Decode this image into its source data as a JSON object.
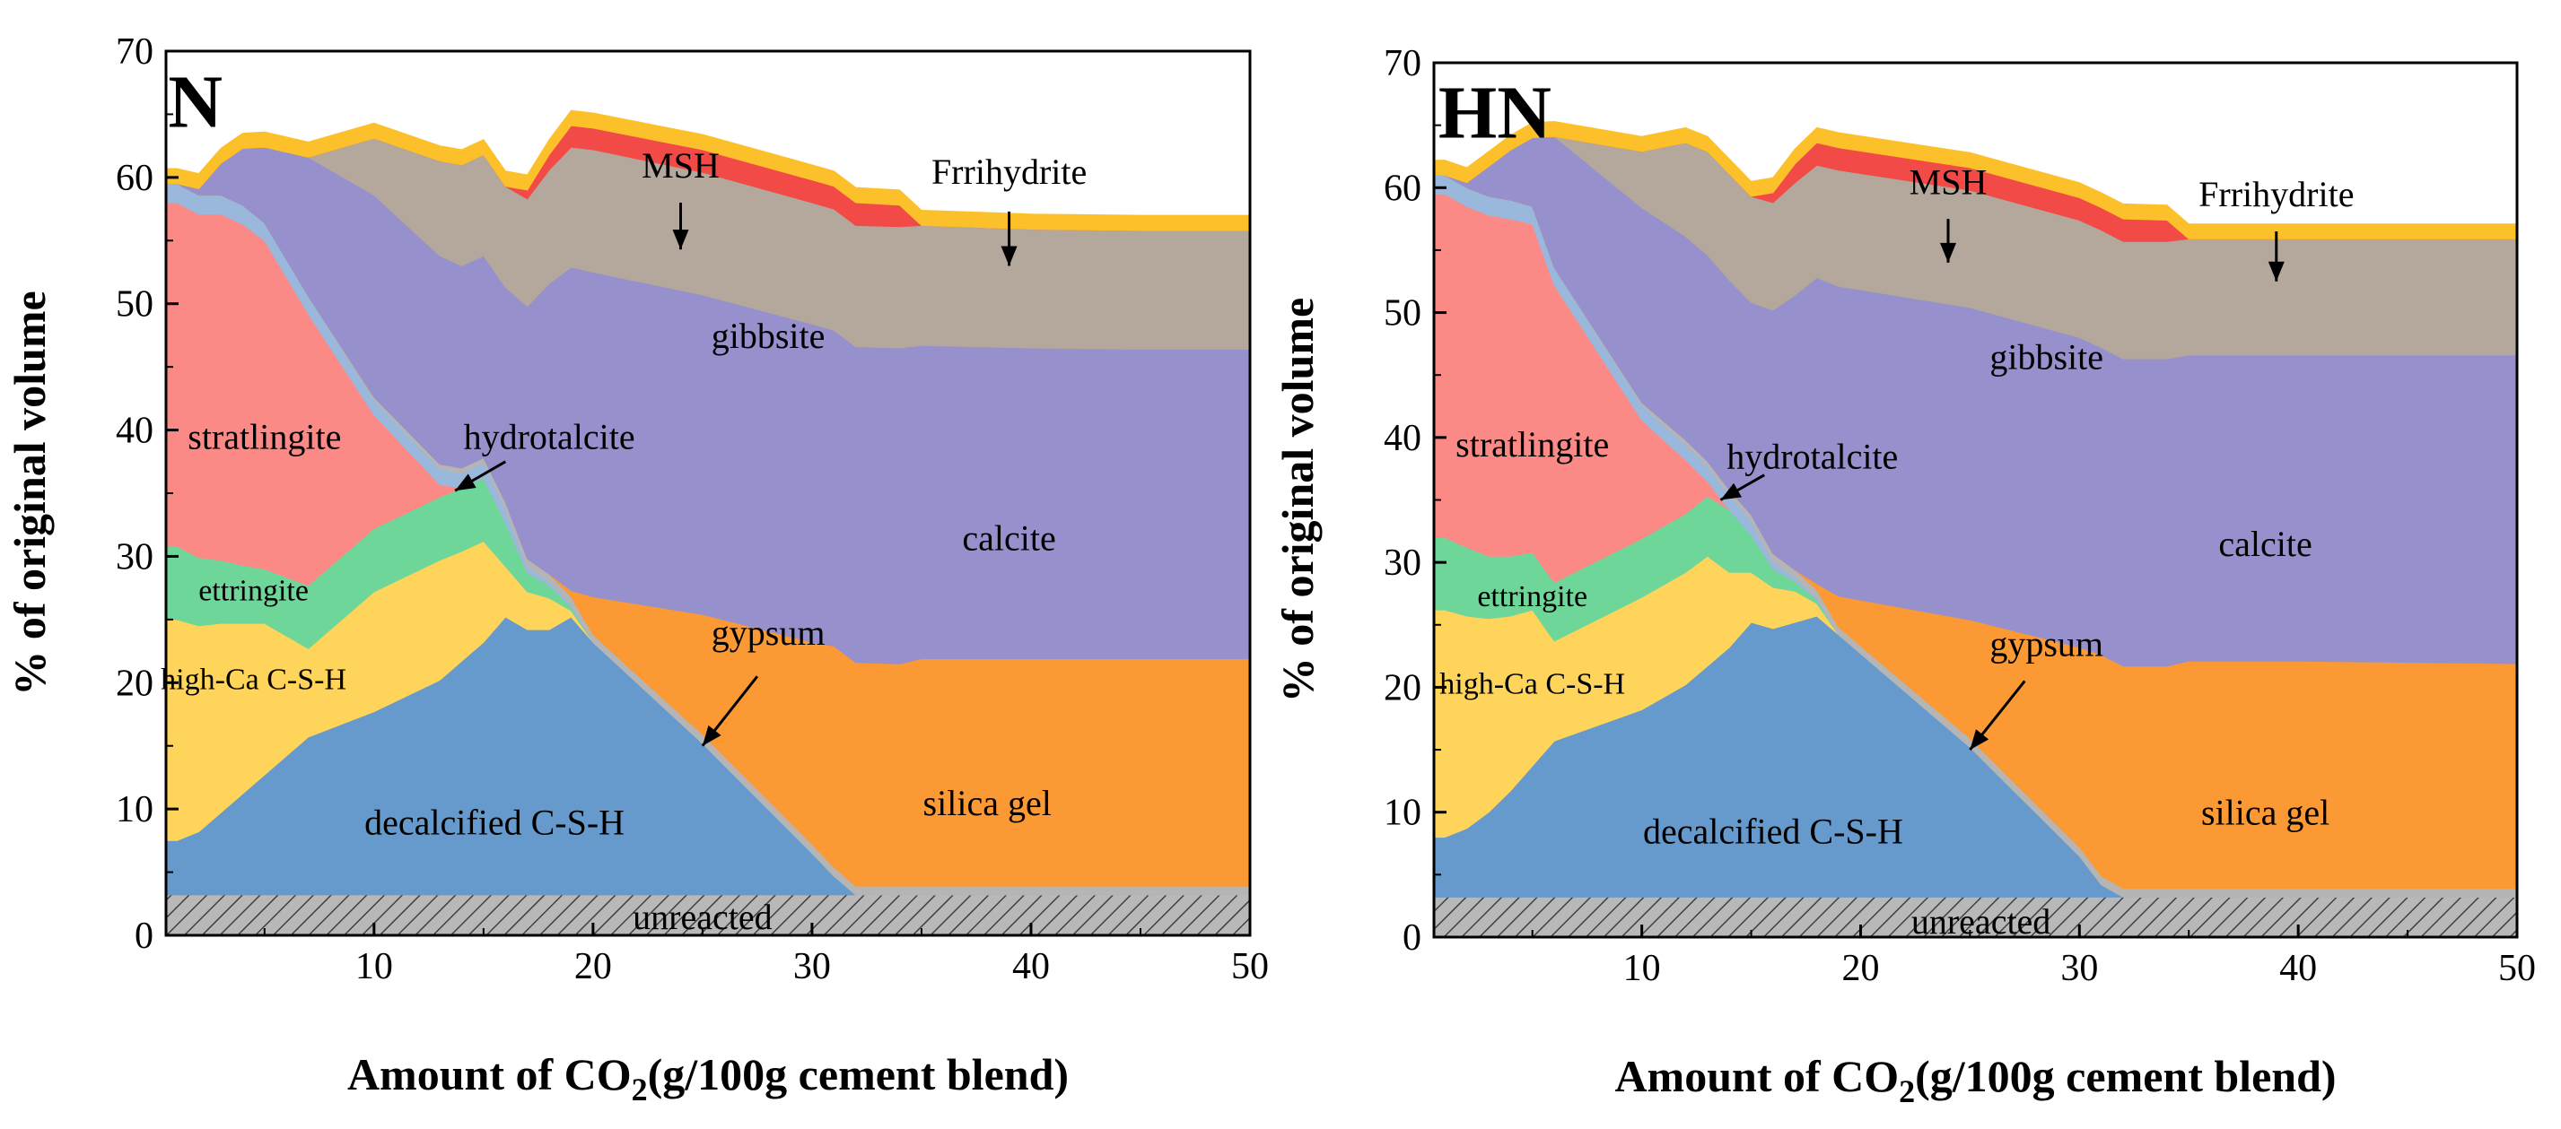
{
  "chart_data": [
    {
      "type": "area",
      "panel_label": "N",
      "xlabel_main": "Amount of CO",
      "xlabel_sub": "2",
      "xlabel_tail": "(g/100g cement blend)",
      "ylabel": "% of original volume",
      "xlim": [
        0.5,
        50
      ],
      "ylim": [
        0,
        70
      ],
      "xticks": [
        "10",
        "20",
        "30",
        "40",
        "50"
      ],
      "yticks": [
        "0",
        "10",
        "20",
        "30",
        "40",
        "50",
        "60",
        "70"
      ],
      "x": [
        0.5,
        1,
        2,
        3,
        4,
        5,
        7,
        10,
        13,
        14,
        15,
        16,
        17,
        18,
        19,
        20,
        25,
        30,
        31,
        32,
        34,
        35,
        40,
        45,
        50
      ],
      "series": [
        {
          "name": "unreacted",
          "color": "#b8b8b8",
          "hatch": true,
          "values": [
            3.2,
            3.2,
            3.2,
            3.2,
            3.2,
            3.2,
            3.2,
            3.2,
            3.2,
            3.2,
            3.2,
            3.2,
            3.2,
            3.2,
            3.2,
            3.2,
            3.2,
            3.2,
            3.2,
            3.2,
            3.2,
            3.2,
            3.2,
            3.2,
            3.2
          ]
        },
        {
          "name": "decalcified C-S-H",
          "color": "#6699cc",
          "values": [
            4.3,
            4.3,
            5,
            6.5,
            8,
            9.5,
            12.5,
            14.5,
            17,
            18.5,
            20,
            22,
            21,
            21,
            22,
            20,
            12,
            3.3,
            1.5,
            0,
            0,
            0,
            0,
            0,
            0
          ]
        },
        {
          "name": "high-Ca C-S-H",
          "color": "#ffd45a",
          "values": [
            17.5,
            17.5,
            16.3,
            15,
            13.5,
            12,
            7,
            9.5,
            9.5,
            8.7,
            8,
            4,
            3,
            2.5,
            0.5,
            0,
            0,
            0,
            0,
            0,
            0,
            0,
            0,
            0,
            0
          ]
        },
        {
          "name": "ettringite",
          "color": "#6fd69a",
          "values": [
            5.8,
            5.8,
            5.4,
            5,
            4.6,
            4.3,
            5,
            5,
            5,
            5,
            5,
            3.5,
            1.5,
            1,
            0.3,
            0,
            0,
            0,
            0,
            0,
            0,
            0,
            0,
            0,
            0
          ]
        },
        {
          "name": "stratlingite",
          "color": "#fb8a87",
          "values": [
            27.2,
            27.2,
            27.2,
            27.4,
            27,
            26,
            21.5,
            9,
            1,
            0,
            0,
            0,
            0,
            0,
            0,
            0,
            0,
            0,
            0,
            0,
            0,
            0,
            0,
            0,
            0
          ]
        },
        {
          "name": "hydrotalcite",
          "color": "#9ab8dc",
          "values": [
            1.5,
            1.5,
            1.5,
            1.5,
            1.5,
            1.4,
            1.4,
            1.2,
            1.2,
            1.2,
            1.2,
            1.1,
            0.5,
            0.3,
            0.2,
            0,
            0,
            0,
            0,
            0,
            0,
            0,
            0,
            0,
            0
          ]
        },
        {
          "name": "gypsum",
          "color": "#b5b5b5",
          "values": [
            0,
            0,
            0,
            0,
            0,
            0,
            0,
            0.2,
            0.4,
            0.4,
            0.4,
            0.5,
            0.6,
            0.6,
            0.6,
            0.6,
            0.7,
            0.7,
            0.7,
            0.7,
            0.7,
            0.7,
            0.7,
            0.7,
            0.7
          ]
        },
        {
          "name": "silica gel",
          "color": "#fb9935",
          "values": [
            0,
            0,
            0,
            0,
            0,
            0,
            0,
            0,
            0,
            0,
            0,
            0,
            0,
            0,
            0.5,
            3,
            9.5,
            16,
            17.5,
            17.7,
            17.6,
            18,
            18,
            18,
            18
          ]
        },
        {
          "name": "calcite",
          "color": "#9690cc",
          "values": [
            0,
            0,
            0.5,
            2.5,
            4.5,
            6,
            11,
            16,
            16.5,
            16,
            16,
            17,
            20,
            23,
            25.6,
            25.7,
            25.3,
            25.2,
            25,
            25,
            25,
            24.8,
            24.6,
            24.5,
            24.5
          ]
        },
        {
          "name": "gibbsite",
          "color": "#b4a79b",
          "values": [
            0,
            0,
            0,
            0,
            0,
            0,
            0,
            4.5,
            7.5,
            8,
            8,
            8,
            8.5,
            9,
            9.5,
            9.7,
            9.7,
            9.6,
            9.6,
            9.6,
            9.6,
            9.5,
            9.4,
            9.4,
            9.4
          ]
        },
        {
          "name": "MSH",
          "color": "#f24a46",
          "values": [
            0,
            0,
            0,
            0,
            0,
            0,
            0,
            0,
            0,
            0,
            0,
            0,
            0.7,
            1.2,
            1.7,
            1.7,
            1.8,
            1.8,
            1.8,
            1.8,
            1.7,
            0,
            0,
            0,
            0
          ]
        },
        {
          "name": "Frrihydrite",
          "color": "#fcc12a",
          "values": [
            1.2,
            1.2,
            1.2,
            1.2,
            1.2,
            1.2,
            1.2,
            1.2,
            1.2,
            1.2,
            1.2,
            1.2,
            1.2,
            1.2,
            1.2,
            1.2,
            1.2,
            1.2,
            1.2,
            1.2,
            1.2,
            1.2,
            1.2,
            1.2,
            1.2
          ]
        }
      ],
      "labels": [
        {
          "text": "N",
          "x": 0.6,
          "y": 64
        },
        {
          "text": "MSH",
          "x": 24,
          "y": 60
        },
        {
          "text": "Frrihydrite",
          "x": 39,
          "y": 59.5
        },
        {
          "text": "gibbsite",
          "x": 28,
          "y": 46.5
        },
        {
          "text": "hydrotalcite",
          "x": 18,
          "y": 38.5
        },
        {
          "text": "calcite",
          "x": 39,
          "y": 30.5
        },
        {
          "text": "stratlingite",
          "x": 5,
          "y": 38.5
        },
        {
          "text": "ettringite",
          "x": 4.5,
          "y": 26.5
        },
        {
          "text": "high-Ca C-S-H",
          "x": 4.5,
          "y": 19.5
        },
        {
          "text": "gypsum",
          "x": 28,
          "y": 23
        },
        {
          "text": "silica gel",
          "x": 38,
          "y": 9.5
        },
        {
          "text": "decalcified C-S-H",
          "x": 15.5,
          "y": 8
        },
        {
          "text": "unreacted",
          "x": 25,
          "y": 0.5
        }
      ],
      "arrows": [
        {
          "from": [
            24,
            58
          ],
          "to": [
            24,
            54.3
          ]
        },
        {
          "from": [
            39,
            57.3
          ],
          "to": [
            39,
            53
          ]
        },
        {
          "from": [
            16,
            37.5
          ],
          "to": [
            13.7,
            35.2
          ]
        },
        {
          "from": [
            27.5,
            20.5
          ],
          "to": [
            25,
            15
          ]
        }
      ]
    },
    {
      "type": "area",
      "panel_label": "HN",
      "xlabel_main": "Amount of CO",
      "xlabel_sub": "2",
      "xlabel_tail": "(g/100g cement blend)",
      "ylabel": "% of original volume",
      "xlim": [
        0.5,
        50
      ],
      "ylim": [
        0,
        70
      ],
      "xticks": [
        "10",
        "20",
        "30",
        "40",
        "50"
      ],
      "yticks": [
        "0",
        "10",
        "20",
        "30",
        "40",
        "50",
        "60",
        "70"
      ],
      "x": [
        0.5,
        1,
        2,
        3,
        4,
        5,
        6,
        10,
        12,
        13,
        14,
        15,
        16,
        17,
        18,
        19,
        25,
        30,
        31,
        32,
        34,
        35,
        40,
        45,
        50
      ],
      "series": [
        {
          "name": "unreacted",
          "color": "#b8b8b8",
          "hatch": true,
          "values": [
            3.2,
            3.2,
            3.2,
            3.2,
            3.2,
            3.2,
            3.2,
            3.2,
            3.2,
            3.2,
            3.2,
            3.2,
            3.2,
            3.2,
            3.2,
            3.2,
            3.2,
            3.2,
            3.2,
            3.2,
            3.2,
            3.2,
            3.2,
            3.2,
            3.2
          ]
        },
        {
          "name": "decalcified C-S-H",
          "color": "#6699cc",
          "values": [
            4.8,
            4.8,
            5.5,
            6.8,
            8.5,
            10.5,
            12.5,
            15,
            17,
            18.5,
            20,
            22,
            21.5,
            22,
            22.5,
            21,
            12,
            3.3,
            1,
            0,
            0,
            0,
            0,
            0,
            0
          ]
        },
        {
          "name": "high-Ca C-S-H",
          "color": "#ffd45a",
          "values": [
            18.2,
            18.2,
            17,
            15.5,
            14,
            12.5,
            8,
            9,
            9,
            8.8,
            6,
            4,
            3.3,
            2.5,
            1,
            0,
            0,
            0,
            0,
            0,
            0,
            0,
            0,
            0,
            0
          ]
        },
        {
          "name": "ettringite",
          "color": "#6fd69a",
          "values": [
            5.8,
            5.8,
            5.5,
            5,
            4.8,
            4.6,
            4.7,
            4.7,
            4.7,
            4.8,
            5,
            3,
            1.5,
            0.8,
            0.3,
            0,
            0,
            0,
            0,
            0,
            0,
            0,
            0,
            0,
            0
          ]
        },
        {
          "name": "stratlingite",
          "color": "#fb8a87",
          "values": [
            27.5,
            27.5,
            27.3,
            27.3,
            27,
            26.3,
            23.8,
            9.5,
            4.3,
            1.2,
            0,
            0,
            0,
            0,
            0,
            0,
            0,
            0,
            0,
            0,
            0,
            0,
            0,
            0,
            0
          ]
        },
        {
          "name": "hydrotalcite",
          "color": "#9ab8dc",
          "values": [
            1.5,
            1.5,
            1.5,
            1.5,
            1.5,
            1.4,
            1.4,
            1.2,
            1.2,
            1.2,
            1.2,
            1.1,
            0.6,
            0.3,
            0.2,
            0,
            0,
            0,
            0,
            0,
            0,
            0,
            0,
            0,
            0
          ]
        },
        {
          "name": "gypsum",
          "color": "#b5b5b5",
          "values": [
            0,
            0,
            0,
            0,
            0,
            0,
            0,
            0.2,
            0.4,
            0.4,
            0.4,
            0.5,
            0.6,
            0.6,
            0.6,
            0.6,
            0.7,
            0.7,
            0.7,
            0.7,
            0.7,
            0.7,
            0.7,
            0.7,
            0.7
          ]
        },
        {
          "name": "silica gel",
          "color": "#fb9935",
          "values": [
            0,
            0,
            0,
            0,
            0,
            0,
            0,
            0,
            0,
            0,
            0,
            0,
            0,
            0,
            0.5,
            2.5,
            9.5,
            16,
            17.7,
            17.8,
            17.8,
            18.2,
            18.2,
            18.1,
            18
          ]
        },
        {
          "name": "calcite",
          "color": "#9690cc",
          "values": [
            0,
            0,
            0.4,
            2.4,
            4,
            5.5,
            10.5,
            15.6,
            16.3,
            16.5,
            16.8,
            17,
            19.5,
            22,
            24.5,
            24.8,
            25,
            24.8,
            24.6,
            24.6,
            24.6,
            24.5,
            24.5,
            24.6,
            24.7
          ]
        },
        {
          "name": "gibbsite",
          "color": "#b4a79b",
          "values": [
            0,
            0,
            0,
            0,
            0,
            0,
            0,
            4.5,
            7.5,
            8.3,
            8.5,
            8.5,
            8.6,
            9,
            9,
            9.3,
            9.4,
            9.4,
            9.4,
            9.4,
            9.4,
            9.3,
            9.3,
            9.3,
            9.3
          ]
        },
        {
          "name": "MSH",
          "color": "#f24a46",
          "values": [
            0,
            0,
            0,
            0,
            0,
            0,
            0,
            0,
            0,
            0,
            0,
            0,
            0.8,
            1.5,
            1.8,
            1.8,
            1.8,
            1.8,
            1.8,
            1.8,
            1.7,
            0,
            0,
            0,
            0
          ]
        },
        {
          "name": "Frrihydrite",
          "color": "#fcc12a",
          "values": [
            1.2,
            1.2,
            1.2,
            1.2,
            1.2,
            1.2,
            1.2,
            1.2,
            1.2,
            1.2,
            1.2,
            1.2,
            1.2,
            1.2,
            1.2,
            1.2,
            1.2,
            1.2,
            1.2,
            1.2,
            1.2,
            1.2,
            1.2,
            1.2,
            1.2
          ]
        }
      ],
      "labels": [
        {
          "text": "HN",
          "x": 0.7,
          "y": 64
        },
        {
          "text": "MSH",
          "x": 24,
          "y": 59.5
        },
        {
          "text": "Frrihydrite",
          "x": 39,
          "y": 58.5
        },
        {
          "text": "gibbsite",
          "x": 28.5,
          "y": 45.5
        },
        {
          "text": "hydrotalcite",
          "x": 17.8,
          "y": 37.5
        },
        {
          "text": "calcite",
          "x": 38.5,
          "y": 30.5
        },
        {
          "text": "stratlingite",
          "x": 5,
          "y": 38.5
        },
        {
          "text": "ettringite",
          "x": 5,
          "y": 26.5
        },
        {
          "text": "high-Ca C-S-H",
          "x": 5,
          "y": 19.5
        },
        {
          "text": "gypsum",
          "x": 28.5,
          "y": 22.5
        },
        {
          "text": "silica gel",
          "x": 38.5,
          "y": 9
        },
        {
          "text": "decalcified C-S-H",
          "x": 16,
          "y": 7.5
        },
        {
          "text": "unreacted",
          "x": 25.5,
          "y": 0.3
        }
      ],
      "arrows": [
        {
          "from": [
            24,
            57.5
          ],
          "to": [
            24,
            54
          ]
        },
        {
          "from": [
            39,
            56.5
          ],
          "to": [
            39,
            52.5
          ]
        },
        {
          "from": [
            15.6,
            37
          ],
          "to": [
            13.6,
            35
          ]
        },
        {
          "from": [
            27.5,
            20.5
          ],
          "to": [
            25,
            15
          ]
        }
      ]
    }
  ]
}
